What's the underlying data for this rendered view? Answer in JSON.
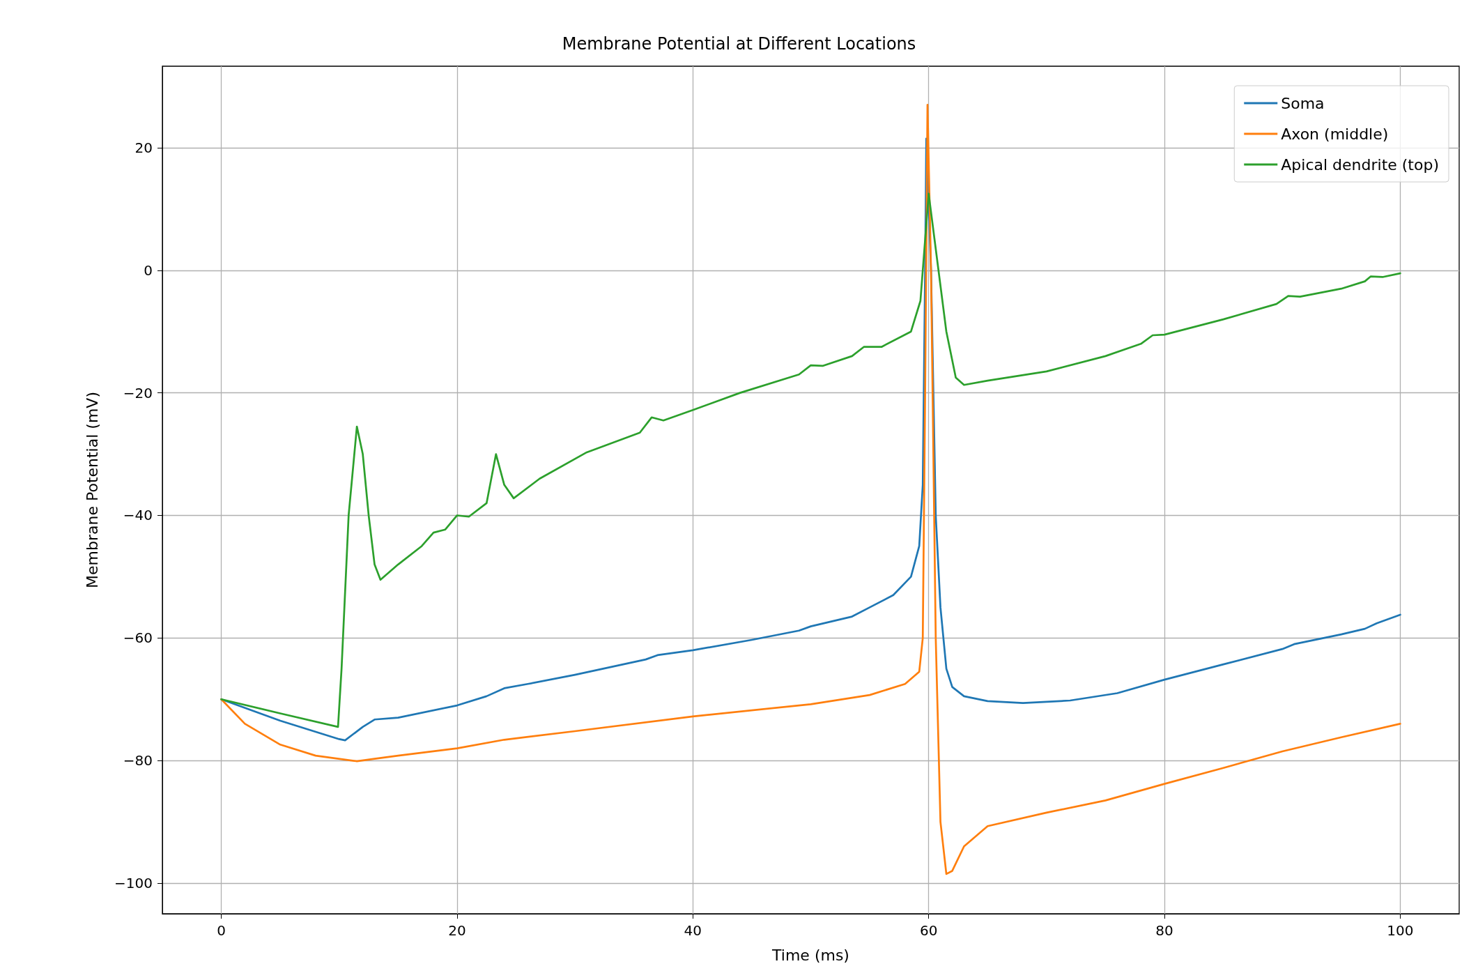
{
  "chart_data": {
    "type": "line",
    "title": "Membrane Potential at Different Locations",
    "xlabel": "Time (ms)",
    "ylabel": "Membrane Potential (mV)",
    "xlim": [
      -5,
      105
    ],
    "ylim": [
      -105,
      33.3
    ],
    "xticks": [
      0,
      20,
      40,
      60,
      80,
      100
    ],
    "yticks": [
      -100,
      -80,
      -60,
      -40,
      -20,
      0,
      20
    ],
    "grid": true,
    "legend": "top right",
    "line_style": "solid",
    "marker": "none",
    "series": [
      {
        "name": "Soma",
        "color": "#1f77b4",
        "x": [
          0,
          5,
          10,
          10.5,
          12,
          13,
          15,
          20,
          22.5,
          24,
          26,
          30,
          36,
          37,
          40,
          45,
          49,
          50,
          53.5,
          55,
          57,
          58.5,
          59.2,
          59.5,
          59.7,
          59.8,
          60.2,
          60.6,
          61,
          61.5,
          62,
          63,
          65,
          68,
          72,
          76,
          80,
          85,
          90,
          91,
          95,
          97,
          98,
          100
        ],
        "values": [
          -70,
          -73.5,
          -76.5,
          -76.7,
          -74.5,
          -73.3,
          -73,
          -71,
          -69.5,
          -68.2,
          -67.5,
          -66,
          -63.5,
          -62.8,
          -62,
          -60.3,
          -58.8,
          -58.1,
          -56.5,
          -55,
          -53,
          -50,
          -45,
          -35,
          0,
          21.5,
          0,
          -40,
          -55,
          -65,
          -68,
          -69.5,
          -70.3,
          -70.6,
          -70.2,
          -69,
          -66.8,
          -64.3,
          -61.8,
          -61,
          -59.4,
          -58.5,
          -57.6,
          -56.2
        ]
      },
      {
        "name": "Axon (middle)",
        "color": "#ff7f0e",
        "x": [
          0,
          2,
          5,
          8,
          11.5,
          13,
          15,
          20,
          24,
          30,
          40,
          50,
          55,
          58,
          59.2,
          59.5,
          59.7,
          59.9,
          60.2,
          60.6,
          61,
          61.5,
          62,
          63,
          65,
          70,
          75,
          80,
          85,
          90,
          95,
          100
        ],
        "values": [
          -70,
          -74,
          -77.4,
          -79.2,
          -80.1,
          -79.7,
          -79.2,
          -78,
          -76.6,
          -75.2,
          -72.8,
          -70.8,
          -69.3,
          -67.5,
          -65.5,
          -60,
          -20,
          27,
          0,
          -60,
          -90,
          -98.5,
          -98,
          -94,
          -90.7,
          -88.5,
          -86.5,
          -83.8,
          -81.2,
          -78.5,
          -76.2,
          -74
        ]
      },
      {
        "name": "Apical dendrite (top)",
        "color": "#2ca02c",
        "x": [
          0,
          5,
          9.9,
          10.2,
          10.8,
          11.5,
          12,
          12.5,
          13,
          13.5,
          15,
          17,
          18,
          19,
          20,
          21,
          22.5,
          23.3,
          24,
          24.8,
          27,
          31,
          35.5,
          36.5,
          37.5,
          40,
          44,
          49,
          50,
          51,
          53.5,
          54.5,
          56,
          58.5,
          59.3,
          59.7,
          60,
          60.5,
          61.5,
          62.3,
          63,
          65,
          70,
          75,
          78,
          79,
          80,
          85,
          89.5,
          90.5,
          91.5,
          95,
          97,
          97.5,
          98.5,
          100
        ],
        "values": [
          -70,
          -72.3,
          -74.5,
          -65,
          -40,
          -25.5,
          -30,
          -40,
          -48,
          -50.5,
          -48,
          -45,
          -42.8,
          -42.3,
          -40,
          -40.2,
          -38,
          -30,
          -35,
          -37.2,
          -34,
          -29.7,
          -26.5,
          -24,
          -24.5,
          -22.8,
          -20,
          -17,
          -15.5,
          -15.6,
          -14,
          -12.5,
          -12.5,
          -10,
          -5,
          5,
          12.5,
          5,
          -10,
          -17.5,
          -18.7,
          -18,
          -16.5,
          -14,
          -12,
          -10.6,
          -10.5,
          -8,
          -5.5,
          -4.2,
          -4.3,
          -3,
          -1.8,
          -1,
          -1.1,
          -0.5
        ]
      }
    ]
  }
}
